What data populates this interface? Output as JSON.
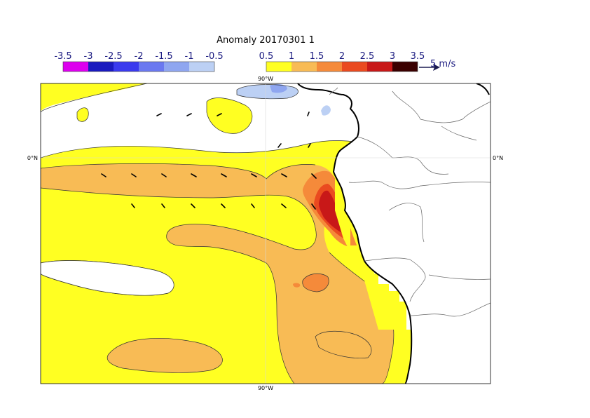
{
  "title": "Anomaly 20170301 1",
  "legend_negative": {
    "labels": [
      "-3.5",
      "-3",
      "-2.5",
      "-2",
      "-1.5",
      "-1",
      "-0.5"
    ],
    "colors": [
      "#dd00ee",
      "#1a1abf",
      "#3a3aee",
      "#6a78f0",
      "#8fa6f0",
      "#bcd0f4"
    ]
  },
  "legend_positive": {
    "labels": [
      "0.5",
      "1",
      "1.5",
      "2",
      "2.5",
      "3",
      "3.5"
    ],
    "colors": [
      "#ffff22",
      "#f8bb55",
      "#f58a3a",
      "#ea4a20",
      "#c81818",
      "#3a0000"
    ]
  },
  "vector_key": {
    "label": "5 m/s"
  },
  "axis_labels": {
    "lon_top": "90°W",
    "lon_bottom": "90°W",
    "lat_left": "0°N",
    "lat_right": "0°N"
  },
  "colors": {
    "yellow": "#ffff22",
    "light_orange": "#f8bb55",
    "orange": "#f58a3a",
    "red_orange": "#ea4a20",
    "red": "#c81818",
    "light_blue": "#bcd0f4",
    "mid_blue": "#8fa6f0",
    "land": "#ffffff",
    "coast": "#000000",
    "border": "#555555"
  }
}
